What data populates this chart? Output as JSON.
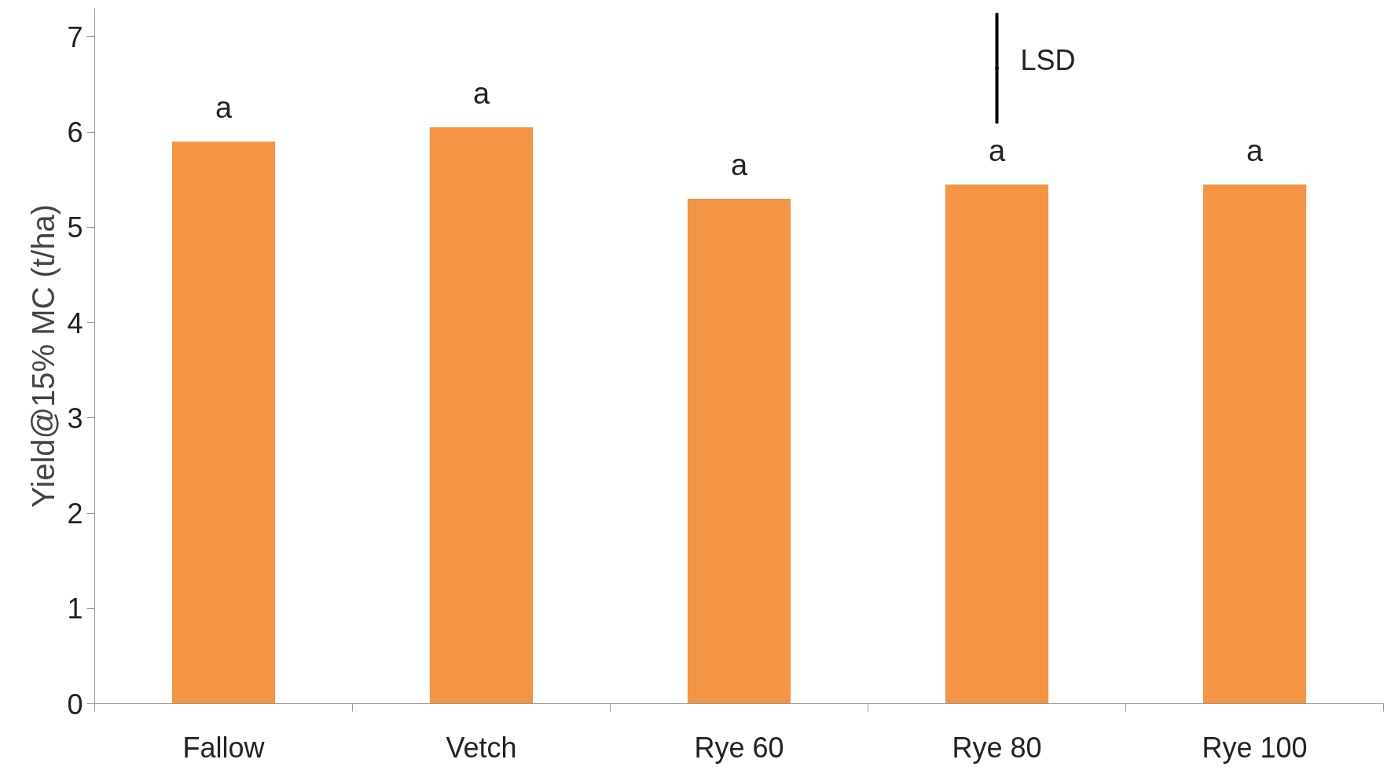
{
  "chart_data": {
    "type": "bar",
    "ylabel": "Yield@15% MC (t/ha)",
    "categories": [
      "Fallow",
      "Vetch",
      "Rye 60",
      "Rye 80",
      "Rye 100"
    ],
    "series": [
      {
        "color": "#f39545",
        "values": [
          5.9,
          6.05,
          5.3,
          5.45,
          5.45
        ]
      },
      {
        "type": "scatter",
        "name": "LSD",
        "color": "#000000",
        "marker": "none",
        "values": [
          null,
          null,
          null,
          6.67,
          null
        ],
        "errors": [
          null,
          null,
          null,
          0.58,
          null
        ]
      }
    ],
    "ylim": [
      0,
      7.3
    ],
    "yticks": [
      0,
      1,
      2,
      3,
      4,
      5,
      6,
      7
    ],
    "grid": false,
    "annotations": [
      {
        "text": "a",
        "x": "Fallow",
        "y": 5.9
      },
      {
        "text": "a",
        "x": "Vetch",
        "y": 6.05
      },
      {
        "text": "a",
        "x": "Rye 60",
        "y": 5.3
      },
      {
        "text": "a",
        "x": "Rye 80",
        "y": 5.45
      },
      {
        "text": "a",
        "x": "Rye 100",
        "y": 5.45
      }
    ]
  }
}
